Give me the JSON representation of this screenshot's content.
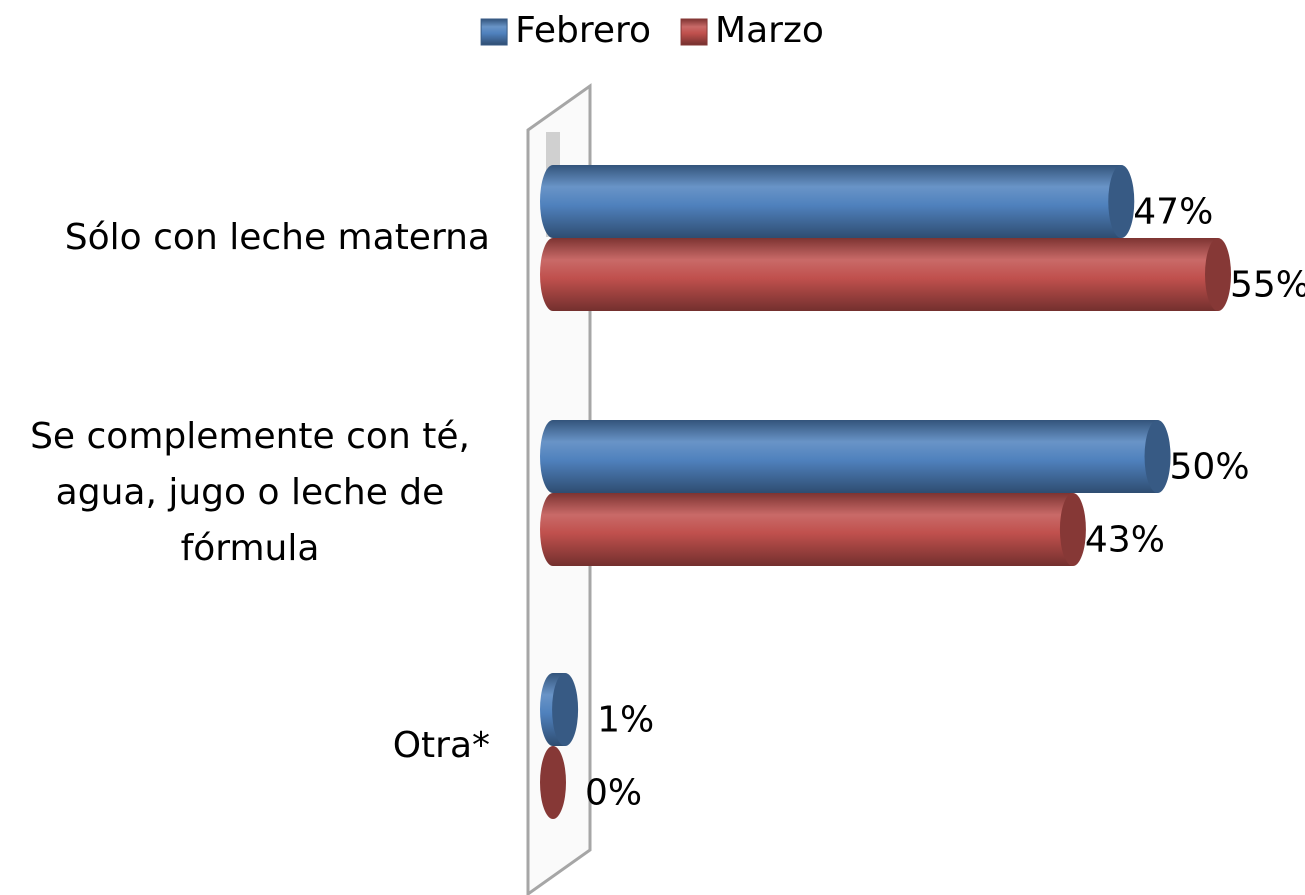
{
  "chart_data": {
    "type": "bar",
    "orientation": "horizontal",
    "categories": [
      "Sólo con leche materna",
      "Se complemente con té, agua, jugo o leche de fórmula",
      "Otra*"
    ],
    "series": [
      {
        "name": "Febrero",
        "color": "#4f81bd",
        "values": [
          47,
          50,
          1
        ],
        "value_labels": [
          "47%",
          "50%",
          "1%"
        ]
      },
      {
        "name": "Marzo",
        "color": "#c0504d",
        "values": [
          55,
          43,
          0
        ],
        "value_labels": [
          "55%",
          "43%",
          "0%"
        ]
      }
    ],
    "legend": "top"
  }
}
